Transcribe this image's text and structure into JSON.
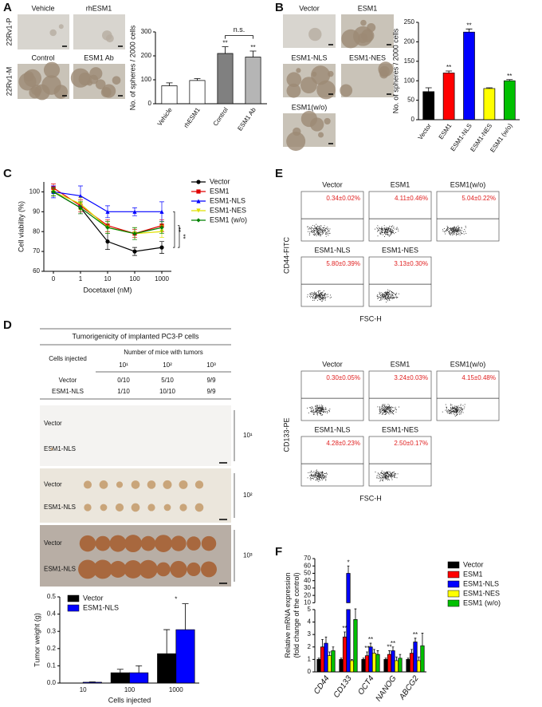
{
  "panel_labels": [
    "A",
    "B",
    "C",
    "D",
    "E",
    "F"
  ],
  "panel_a_images": {
    "columns": [
      "Vehicle",
      "rhESM1",
      "Control",
      "ESM1 Ab"
    ],
    "rows": [
      "22Rv1-P",
      "22Rv1-M"
    ]
  },
  "panel_b_images": {
    "labels": [
      "Vector",
      "ESM1",
      "ESM1-NLS",
      "ESM1-NES",
      "ESM1(w/o)"
    ]
  },
  "chart_data": [
    {
      "type": "bar",
      "y_label": "No. of spheres / 2000 cells",
      "categories": [
        "Vehicle",
        "rhESM1",
        "Control",
        "ESM1 Ab"
      ],
      "values": [
        75,
        97,
        210,
        195
      ],
      "errors": [
        12,
        8,
        28,
        25
      ],
      "colors": [
        "#ffffff",
        "#ffffff",
        "#808080",
        "#b5b5b5"
      ],
      "significance": [
        null,
        null,
        "**",
        "**"
      ],
      "bracket_label": "n.s.",
      "ylim": [
        0,
        300
      ],
      "yticks": [
        0,
        100,
        200,
        300
      ]
    },
    {
      "type": "bar",
      "y_label": "No. of spheres / 2000 cells",
      "categories": [
        "Vector",
        "ESM1",
        "ESM1-NLS",
        "ESM1-NES",
        "ESM1 (w/o)"
      ],
      "values": [
        72,
        120,
        225,
        80,
        100
      ],
      "errors": [
        10,
        5,
        8,
        2,
        3
      ],
      "colors": [
        "#000000",
        "#ff0000",
        "#0000ff",
        "#ffff00",
        "#00c000"
      ],
      "significance": [
        null,
        "**",
        "**",
        null,
        "**"
      ],
      "ylim": [
        0,
        250
      ],
      "yticks": [
        0,
        50,
        100,
        150,
        200,
        250
      ]
    },
    {
      "type": "line",
      "x_label": "Docetaxel (nM)",
      "y_label": "Cell viability (%)",
      "categories": [
        "0",
        "1",
        "10",
        "100",
        "1000"
      ],
      "series": [
        {
          "name": "Vector",
          "color": "#000000",
          "marker": "circle",
          "values": [
            100,
            92,
            75,
            70,
            72
          ],
          "errors": [
            2,
            3,
            4,
            2,
            3
          ]
        },
        {
          "name": "ESM1",
          "color": "#e00000",
          "marker": "square",
          "values": [
            102,
            93,
            83,
            79,
            83
          ],
          "errors": [
            2,
            3,
            3,
            2,
            3
          ]
        },
        {
          "name": "ESM1-NLS",
          "color": "#0000ff",
          "marker": "triangle",
          "values": [
            100,
            98,
            90,
            90,
            90
          ],
          "errors": [
            3,
            5,
            3,
            2,
            5
          ]
        },
        {
          "name": "ESM1-NES",
          "color": "#e0e000",
          "marker": "triangle-down",
          "values": [
            100,
            94,
            82,
            79,
            80
          ],
          "errors": [
            2,
            3,
            3,
            3,
            3
          ]
        },
        {
          "name": "ESM1 (w/o)",
          "color": "#008000",
          "marker": "diamond",
          "values": [
            100,
            92,
            82,
            79,
            82
          ],
          "errors": [
            2,
            3,
            3,
            3,
            3
          ]
        }
      ],
      "significance": [
        "**",
        "**"
      ],
      "ylim": [
        60,
        105
      ],
      "yticks": [
        60,
        70,
        80,
        90,
        100
      ]
    },
    {
      "type": "bar",
      "x_label": "Cells injected",
      "y_label": "Tumor weight (g)",
      "categories": [
        "10",
        "100",
        "1000"
      ],
      "series": [
        {
          "name": "Vector",
          "color": "#000000",
          "values": [
            0,
            0.06,
            0.17
          ],
          "errors": [
            0,
            0.02,
            0.14
          ]
        },
        {
          "name": "ESM1-NLS",
          "color": "#0000ff",
          "values": [
            0.005,
            0.06,
            0.31
          ],
          "errors": [
            0.002,
            0.04,
            0.15
          ]
        }
      ],
      "significance": [
        null,
        null,
        "*"
      ],
      "ylim": [
        0,
        0.5
      ],
      "yticks": [
        {
          "value": 0,
          "label": "0.0"
        },
        0.1,
        0.2,
        0.3,
        0.4,
        0.5
      ]
    },
    {
      "type": "bar",
      "y_label": [
        "Relative mRNA expression",
        "(fold change of the control)"
      ],
      "categories": [
        "CD44",
        "CD133",
        "OCT4",
        "NANOG",
        "ABCG2"
      ],
      "series": [
        {
          "name": "Vector",
          "color": "#000000",
          "values": [
            1,
            1,
            1,
            1,
            1
          ],
          "errors": [
            0.1,
            0.1,
            0.1,
            0.1,
            0.1
          ]
        },
        {
          "name": "ESM1",
          "color": "#ff0000",
          "values": [
            2.0,
            2.8,
            1.3,
            1.4,
            1.5
          ],
          "errors": [
            0.6,
            0.4,
            0.3,
            0.3,
            0.3
          ],
          "significance": [
            null,
            "**",
            "**",
            "**",
            null
          ]
        },
        {
          "name": "ESM1-NLS",
          "color": "#0000ff",
          "values": [
            2.3,
            50,
            2.0,
            1.7,
            2.4
          ],
          "errors": [
            0.5,
            10,
            0.3,
            0.3,
            0.3
          ],
          "significance": [
            null,
            "*",
            "**",
            "**",
            "**"
          ]
        },
        {
          "name": "ESM1-NES",
          "color": "#ffff00",
          "values": [
            1.3,
            0.9,
            1.5,
            0.9,
            0.9
          ],
          "errors": [
            0.3,
            0.1,
            0.3,
            0.3,
            0.3
          ]
        },
        {
          "name": "ESM1 (w/o)",
          "color": "#00c000",
          "values": [
            1.7,
            4.2,
            1.4,
            1.1,
            2.1
          ],
          "errors": [
            0.3,
            1.3,
            0.3,
            0.3,
            1.0
          ]
        }
      ],
      "ylim": [
        0,
        70
      ],
      "axis_break": [
        5,
        10
      ],
      "yticks": [
        0,
        1,
        2,
        3,
        4,
        5,
        10,
        20,
        30,
        40,
        50,
        60,
        70
      ]
    }
  ],
  "table": {
    "title": "Tumorigenicity of implanted PC3-P cells",
    "row_header": "Cells injected",
    "group_header": "Number of mice with tumors",
    "columns": [
      "10¹",
      "10²",
      "10³"
    ],
    "rows": [
      [
        "Vector",
        "0/10",
        "5/10",
        "9/9"
      ],
      [
        "ESM1-NLS",
        "1/10",
        "10/10",
        "9/9"
      ]
    ]
  },
  "tumor_photo": {
    "row_labels": [
      "Vector",
      "ESM1-NLS"
    ],
    "doses": [
      "10¹",
      "10²",
      "10³"
    ]
  },
  "flow": {
    "x_label": "FSC-H",
    "groups": [
      {
        "y_label": "CD44-FITC",
        "labels": [
          "Vector",
          "ESM1",
          "ESM1(w/o)",
          "ESM1-NLS",
          "ESM1-NES"
        ],
        "percentages": [
          "0.34±0.02%",
          "4.11±0.46%",
          "5.04±0.22%",
          "5.80±0.39%",
          "3.13±0.30%"
        ]
      },
      {
        "y_label": "CD133-PE",
        "labels": [
          "Vector",
          "ESM1",
          "ESM1(w/o)",
          "ESM1-NLS",
          "ESM1-NES"
        ],
        "percentages": [
          "0.30±0.05%",
          "3.24±0.03%",
          "4.15±0.48%",
          "4.28±0.23%",
          "2.50±0.17%"
        ]
      }
    ]
  }
}
